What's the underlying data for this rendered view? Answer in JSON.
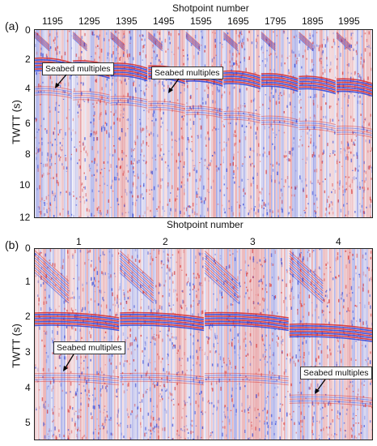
{
  "panel_a": {
    "letter": "(a)",
    "x_axis_title": "Shotpoint number",
    "x_ticks": [
      "1195",
      "1295",
      "1395",
      "1495",
      "1595",
      "1695",
      "1795",
      "1895",
      "1995"
    ],
    "y_axis_title": "TWTT (s)",
    "y_ticks": [
      "0",
      "2",
      "4",
      "6",
      "8",
      "10",
      "12"
    ],
    "annotations": [
      "Seabed multiples",
      "Seabed multiples"
    ]
  },
  "panel_b": {
    "letter": "(b)",
    "x_axis_title": "Shotpoint number",
    "x_ticks": [
      "1",
      "2",
      "3",
      "4"
    ],
    "y_axis_title": "TWTT (s)",
    "y_ticks": [
      "0",
      "1",
      "2",
      "3",
      "4",
      "5"
    ],
    "annotations": [
      "Seabed multiples",
      "Seabed multiples"
    ]
  },
  "colors": {
    "positive": "#d62a2a",
    "negative": "#2a3fd6",
    "background": "#f6f2f6"
  }
}
